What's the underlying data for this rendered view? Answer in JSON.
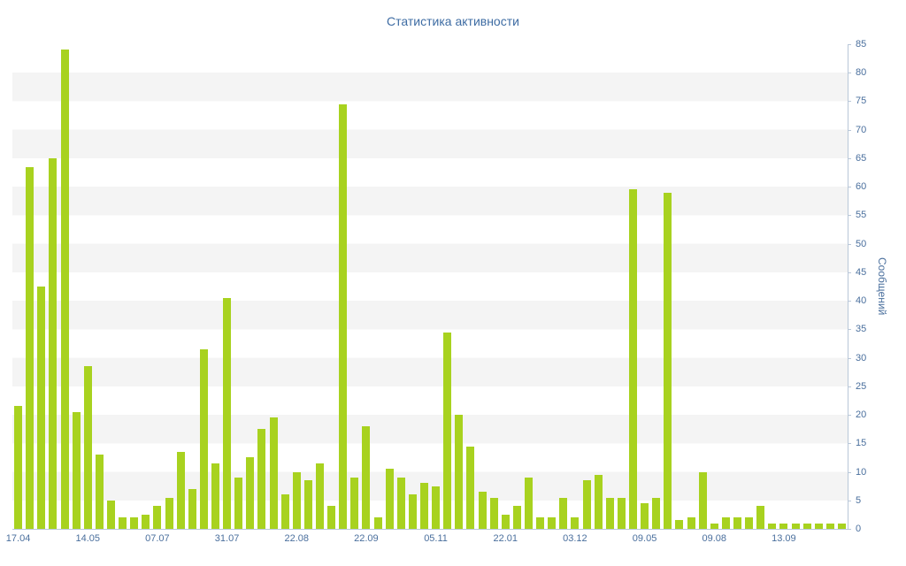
{
  "page": {
    "title": "Статистика активности"
  },
  "chart_data": {
    "type": "bar",
    "title": "Статистика активности",
    "xlabel": "",
    "ylabel": "Сообщений",
    "ylim": [
      0,
      85
    ],
    "y_tick_step": 5,
    "grid": "horizontal-bands",
    "legend": null,
    "bar_color": "#a8d21f",
    "stripe_color": "#f4f4f4",
    "text_color": "#4a6f9d",
    "title_color": "#3e6ca3",
    "axis_color": "#b9c7d8",
    "values": [
      21.5,
      63.5,
      42.5,
      65,
      84,
      20.5,
      28.5,
      13,
      5,
      2,
      2,
      2.5,
      4,
      5.5,
      13.5,
      7,
      31.5,
      11.5,
      40.5,
      9,
      12.5,
      17.5,
      19.5,
      6,
      10,
      8.5,
      11.5,
      4,
      74.5,
      9,
      18,
      2,
      10.5,
      9,
      6,
      8,
      7.5,
      34.5,
      20,
      14.5,
      6.5,
      5.5,
      2.5,
      4,
      9,
      2,
      2,
      5.5,
      2,
      8.5,
      9.5,
      5.5,
      5.5,
      59.5,
      4.5,
      5.5,
      59,
      1.5,
      2,
      10,
      1,
      2,
      2,
      2,
      4,
      1,
      1,
      1,
      1,
      1,
      1,
      1
    ],
    "x_tick_indices": [
      0,
      6,
      12,
      18,
      24,
      30,
      36,
      42,
      48,
      54,
      60,
      66
    ],
    "x_tick_labels": [
      "17.04",
      "14.05",
      "07.07",
      "31.07",
      "22.08",
      "22.09",
      "05.11",
      "22.01",
      "03.12",
      "09.05",
      "09.08",
      "13.09"
    ]
  }
}
